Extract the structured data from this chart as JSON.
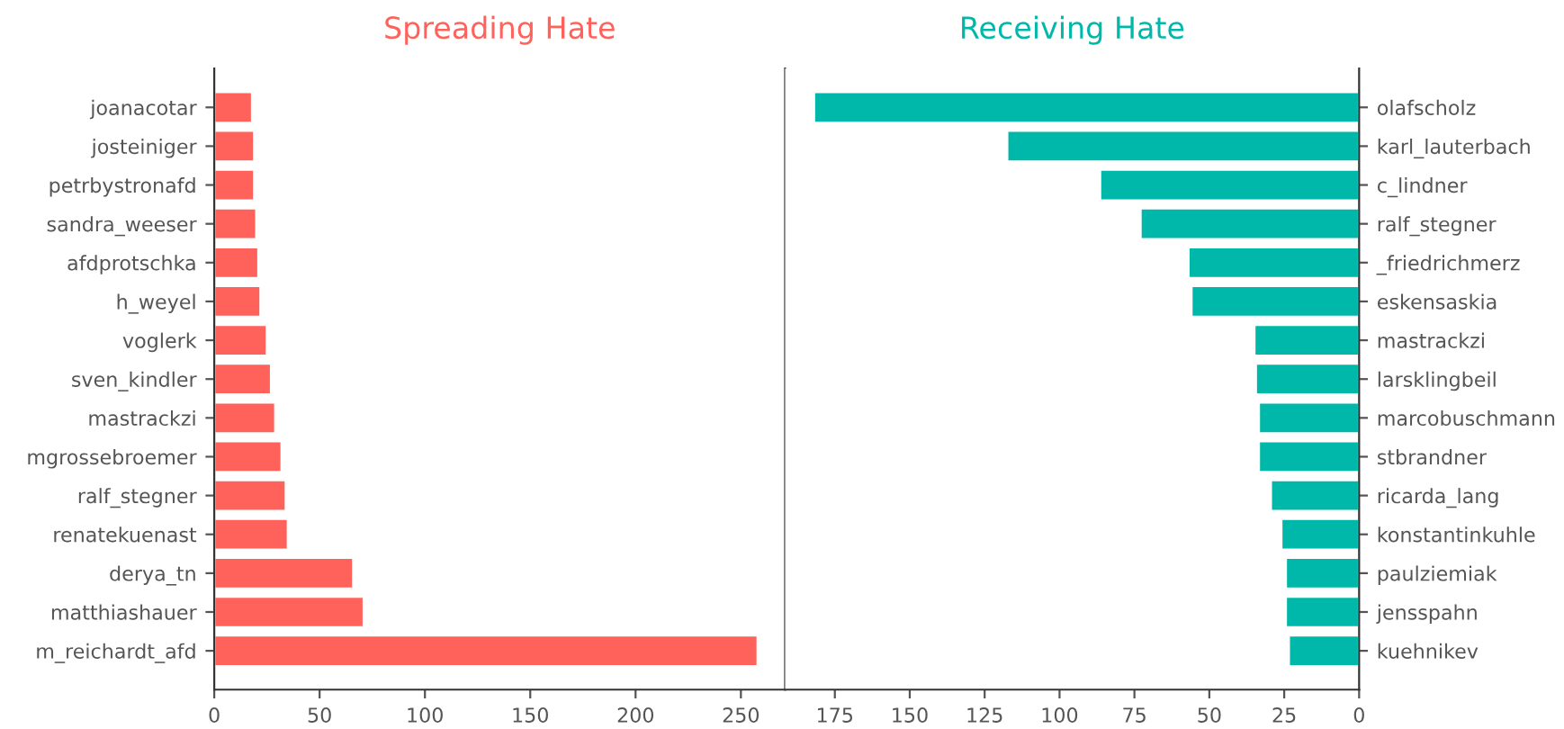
{
  "chart_data": [
    {
      "type": "bar",
      "orientation": "horizontal",
      "title": "Spreading Hate",
      "categories": [
        "joanacotar",
        "josteiniger",
        "petrbystronafd",
        "sandra_weeser",
        "afdprotschka",
        "h_weyel",
        "voglerk",
        "sven_kindler",
        "mastrackzi",
        "mgrossebroemer",
        "ralf_stegner",
        "renatekuenast",
        "derya_tn",
        "matthiashauer",
        "m_reichardt_afd"
      ],
      "series": [
        {
          "color": "#ff615b",
          "values": [
            18,
            19,
            19,
            20,
            21,
            22,
            25,
            27,
            29,
            32,
            34,
            35,
            66,
            71,
            258
          ]
        }
      ],
      "xlim": [
        0,
        271
      ],
      "xticks": [
        0,
        50,
        100,
        150,
        200,
        250
      ],
      "grid": false,
      "legend": false
    },
    {
      "type": "bar",
      "orientation": "horizontal",
      "title": "Receiving Hate",
      "categories": [
        "olafscholz",
        "karl_lauterbach",
        "c_lindner",
        "ralf_stegner",
        "_friedrichmerz",
        "eskensaskia",
        "mastrackzi",
        "larsklingbeil",
        "marcobuschmann",
        "stbrandner",
        "ricarda_lang",
        "konstantinkuhle",
        "paulziemiak",
        "jensspahn",
        "kuehnikev"
      ],
      "series": [
        {
          "color": "#00b8a9",
          "values": [
            182,
            117.5,
            86.5,
            73,
            57,
            56,
            35,
            34.5,
            33.5,
            33.5,
            29.5,
            26,
            24.5,
            24.5,
            23.5
          ]
        }
      ],
      "xlim": [
        191.6,
        0
      ],
      "xticks": [
        175,
        150,
        125,
        100,
        75,
        50,
        25,
        0
      ],
      "grid": false,
      "legend": false
    }
  ]
}
